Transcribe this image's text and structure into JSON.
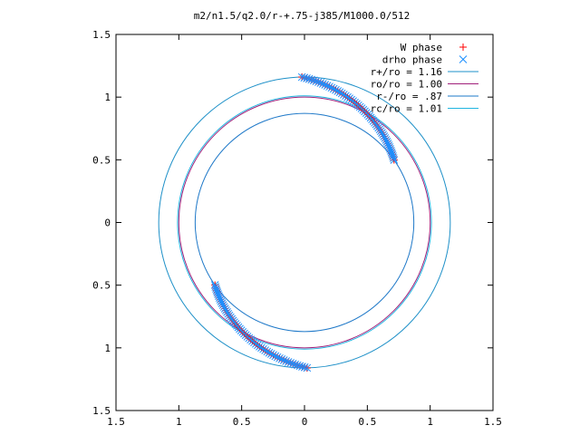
{
  "chart_data": {
    "type": "scatter",
    "title": "m2/n1.5/q2.0/r-+.75-j385/M1000.0/512",
    "xlabel": "",
    "ylabel": "",
    "xlim": [
      -1.5,
      1.5
    ],
    "ylim": [
      -1.5,
      1.5
    ],
    "x_ticks": [
      -1.5,
      -1.0,
      -0.5,
      0,
      0.5,
      1.0,
      1.5
    ],
    "x_tick_labels": [
      "1.5",
      "1",
      "0.5",
      "0",
      "0.5",
      "1",
      "1.5"
    ],
    "y_ticks": [
      1.5,
      1.0,
      0.5,
      0,
      -0.5,
      -1.0,
      -1.5
    ],
    "y_tick_labels": [
      "1.5",
      "1",
      "0.5",
      "0",
      "0.5",
      "1",
      "1.5"
    ],
    "grid": false,
    "legend_position": "top-right",
    "circles": [
      {
        "name": "r+/ro = 1.16",
        "radius": 1.16,
        "color": "#1e90c8"
      },
      {
        "name": "ro/ro = 1.00",
        "radius": 1.0,
        "color": "#a0207a"
      },
      {
        "name": "r-/ro = .87",
        "radius": 0.87,
        "color": "#1e78c8"
      },
      {
        "name": "rc/ro = 1.01",
        "radius": 1.01,
        "color": "#20b4e0"
      }
    ],
    "series": [
      {
        "name": "W phase",
        "marker": "+",
        "color": "#ff0000",
        "arms": [
          {
            "theta_start_deg": 91,
            "theta_end_deg": 35,
            "r_start": 1.16,
            "r_end": 0.87
          },
          {
            "theta_start_deg": 271,
            "theta_end_deg": 215,
            "r_start": 1.16,
            "r_end": 0.87
          }
        ]
      },
      {
        "name": "drho phase",
        "marker": "x",
        "color": "#1e90ff",
        "arms": [
          {
            "theta_start_deg": 91,
            "theta_end_deg": 35,
            "r_start": 1.16,
            "r_end": 0.87
          },
          {
            "theta_start_deg": 271,
            "theta_end_deg": 215,
            "r_start": 1.16,
            "r_end": 0.87
          }
        ]
      }
    ]
  }
}
